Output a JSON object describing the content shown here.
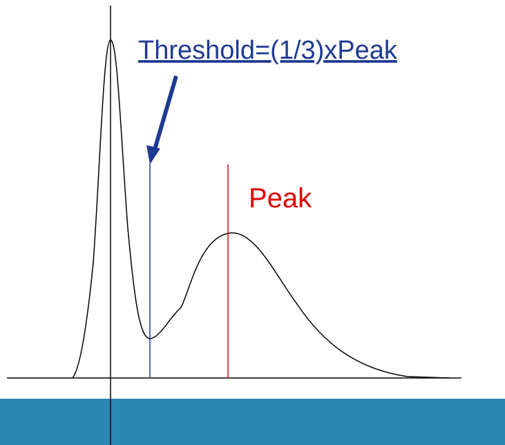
{
  "labels": {
    "threshold": "Threshold=(1/3)xPeak",
    "peak": "Peak"
  }
}
